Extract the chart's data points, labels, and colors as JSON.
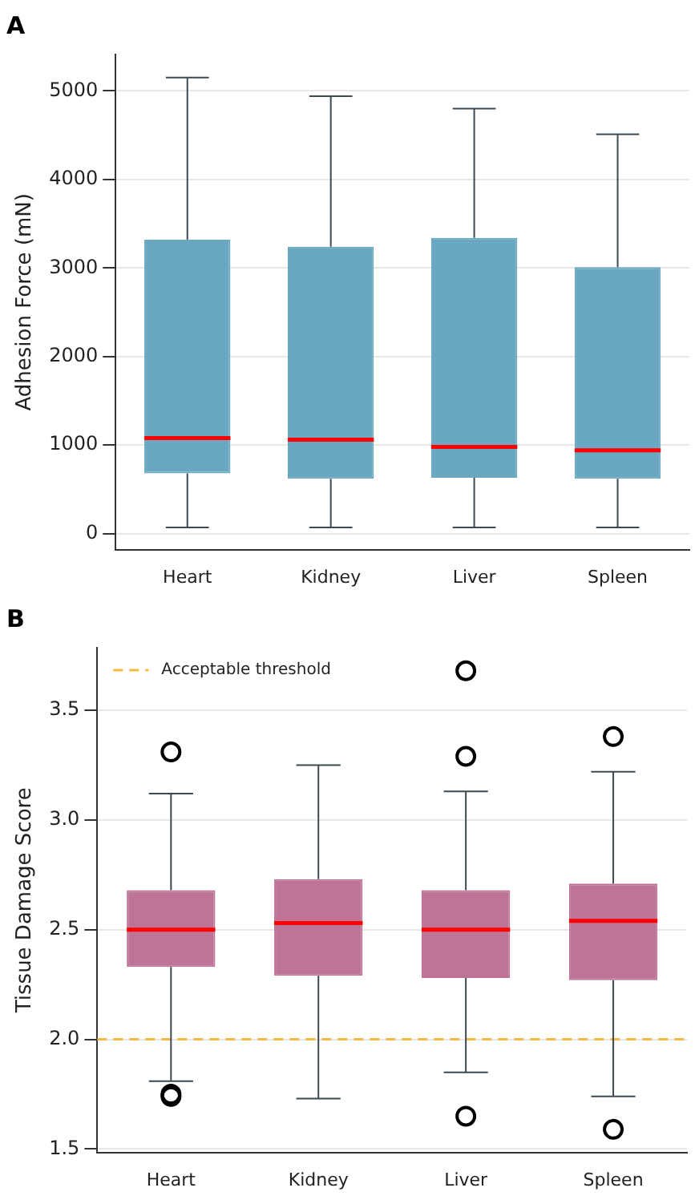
{
  "chart_data": [
    {
      "type": "box",
      "title": "A",
      "ylabel": "Adhesion Force (mN)",
      "categories": [
        "Heart",
        "Kidney",
        "Liver",
        "Spleen"
      ],
      "series": [
        {
          "color": "#6aa8c2",
          "boxes": [
            {
              "low": 70,
              "q1": 680,
              "median": 1080,
              "q3": 3320,
              "high": 5150
            },
            {
              "low": 70,
              "q1": 620,
              "median": 1060,
              "q3": 3240,
              "high": 4940
            },
            {
              "low": 70,
              "q1": 630,
              "median": 980,
              "q3": 3340,
              "high": 4800
            },
            {
              "low": 70,
              "q1": 620,
              "median": 940,
              "q3": 3010,
              "high": 4510
            }
          ]
        }
      ],
      "ylim": [
        -180,
        5410
      ],
      "yticks": [
        0,
        1000,
        2000,
        3000,
        4000,
        5000
      ],
      "grid": "y"
    },
    {
      "type": "box",
      "title": "B",
      "ylabel": "Tissue Damage Score",
      "categories": [
        "Heart",
        "Kidney",
        "Liver",
        "Spleen"
      ],
      "series": [
        {
          "color": "#bd7497",
          "boxes": [
            {
              "low": 1.81,
              "q1": 2.33,
              "median": 2.5,
              "q3": 2.68,
              "high": 3.12,
              "outliers": [
                3.31,
                1.74,
                1.75
              ]
            },
            {
              "low": 1.73,
              "q1": 2.29,
              "median": 2.53,
              "q3": 2.73,
              "high": 3.25
            },
            {
              "low": 1.85,
              "q1": 2.28,
              "median": 2.5,
              "q3": 2.68,
              "high": 3.13,
              "outliers": [
                3.68,
                3.29,
                1.65
              ]
            },
            {
              "low": 1.74,
              "q1": 2.27,
              "median": 2.54,
              "q3": 2.71,
              "high": 3.22,
              "outliers": [
                3.38,
                1.59
              ]
            }
          ]
        }
      ],
      "ylim": [
        1.485,
        3.785
      ],
      "yticks": [
        1.5,
        {
          "value": 2,
          "label": "2.0"
        },
        2.5,
        {
          "value": 3,
          "label": "3.0"
        },
        3.5
      ],
      "grid": "y",
      "ref_lines": [
        {
          "axis": "y",
          "value": 2.0,
          "label": "Acceptable threshold",
          "color": "#f5b942",
          "line_style": "dashed"
        }
      ],
      "legend": "top left"
    }
  ]
}
